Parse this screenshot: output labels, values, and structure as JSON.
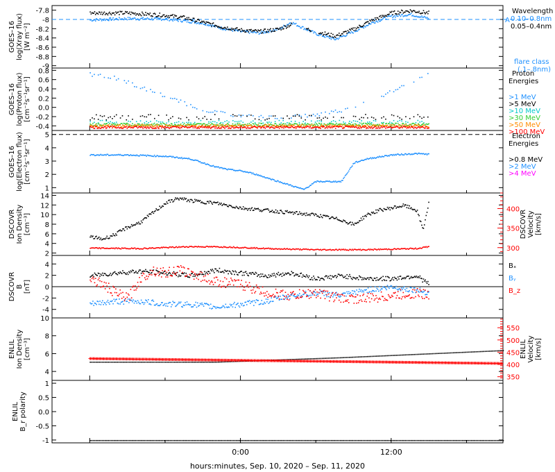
{
  "footer": {
    "xlabel": "hours:minutes, Sep. 10, 2020 – Sep. 11, 2020",
    "x_ticks": [
      "0:00",
      "12:00"
    ]
  },
  "chart_data": [
    {
      "type": "scatter",
      "ylabel_lines": [
        "GOES–16",
        "log(Xray flux)",
        "[W m⁻²]"
      ],
      "yticks": [
        -9.0,
        -8.8,
        -8.6,
        -8.4,
        -8.2,
        -8.0,
        -7.8
      ],
      "ylim": [
        -9.05,
        -7.7
      ],
      "legend_title": "Wavelength",
      "legend": [
        {
          "label": "0.10–0.8nm",
          "color": "#1e90ff"
        },
        {
          "label": "0.05–0.4nm",
          "color": "#000000"
        }
      ],
      "annotation": [
        "flare class",
        "(.1–.8nm)"
      ],
      "annotation_right_label": "A",
      "reference_line": {
        "y": -8.0,
        "color": "#1e90ff"
      },
      "series": [
        {
          "name": "0.10–0.8nm",
          "color": "#1e90ff",
          "jitter": 0.03,
          "x": [
            -12,
            -9,
            -6,
            -4.5,
            -3,
            -1.5,
            0,
            1.5,
            3,
            4,
            6,
            7.5,
            9,
            10.5,
            12,
            13.5,
            15
          ],
          "y": [
            -8.0,
            -7.97,
            -7.98,
            -8.02,
            -8.07,
            -8.18,
            -8.25,
            -8.28,
            -8.2,
            -8.05,
            -8.3,
            -8.42,
            -8.25,
            -8.05,
            -7.92,
            -7.88,
            -7.97
          ]
        },
        {
          "name": "0.05–0.4nm",
          "color": "#000000",
          "jitter": 0.04,
          "gaps": [
            [
              4.1,
              5.2
            ],
            [
              5.6,
              6.2
            ]
          ],
          "x": [
            -12,
            -9,
            -6,
            -4.5,
            -3,
            -1.5,
            0,
            1.5,
            3,
            4,
            6,
            7.5,
            9,
            10.5,
            12,
            13.5,
            15
          ],
          "y": [
            -7.85,
            -7.85,
            -7.9,
            -7.95,
            -8.05,
            -8.15,
            -8.22,
            -8.25,
            -8.2,
            -8.1,
            -8.25,
            -8.35,
            -8.2,
            -8.0,
            -7.85,
            -7.8,
            -7.85
          ]
        }
      ]
    },
    {
      "type": "scatter",
      "ylabel_lines": [
        "GOES–16",
        "log(Proton flux)",
        "[cm⁻²s⁻¹sr⁻¹]"
      ],
      "yticks": [
        -0.4,
        -0.2,
        0.0,
        0.2,
        0.4,
        0.6,
        0.8
      ],
      "ylim": [
        -0.5,
        0.85
      ],
      "legend_title": "Proton",
      "legend_title_2": "Energies",
      "legend": [
        {
          "label": ">1 MeV",
          "color": "#1e90ff"
        },
        {
          "label": ">5 MeV",
          "color": "#000000"
        },
        {
          "label": ">10 MeV",
          "color": "#00c8c8"
        },
        {
          "label": ">30 MeV",
          "color": "#32cd32"
        },
        {
          "label": ">50 MeV",
          "color": "#ff8c00"
        },
        {
          "label": ">100 MeV",
          "color": "#ff0000"
        }
      ],
      "series": [
        {
          "name": ">1 MeV",
          "color": "#1e90ff",
          "jitter": 0.04,
          "sparse": true,
          "x": [
            -12,
            -10,
            -8,
            -6,
            -4,
            -2,
            0,
            2,
            4,
            6,
            8,
            10,
            12,
            14,
            15
          ],
          "y": [
            0.72,
            0.65,
            0.45,
            0.25,
            0.05,
            -0.1,
            -0.18,
            -0.2,
            -0.2,
            -0.15,
            -0.05,
            0.1,
            0.35,
            0.62,
            0.72
          ]
        },
        {
          "name": ">5 MeV",
          "color": "#000000",
          "jitter": 0.06,
          "sparse": true,
          "x": [
            -12,
            15
          ],
          "y": [
            -0.2,
            -0.2
          ]
        },
        {
          "name": ">10 MeV",
          "color": "#00c8c8",
          "jitter": 0.03,
          "sparse": true,
          "x": [
            -12,
            15
          ],
          "y": [
            -0.3,
            -0.3
          ]
        },
        {
          "name": ">30 MeV",
          "color": "#32cd32",
          "jitter": 0.03,
          "x": [
            -12,
            15
          ],
          "y": [
            -0.36,
            -0.36
          ]
        },
        {
          "name": ">50 MeV",
          "color": "#ff8c00",
          "jitter": 0.03,
          "x": [
            -12,
            15
          ],
          "y": [
            -0.39,
            -0.39
          ]
        },
        {
          "name": ">100 MeV",
          "color": "#ff0000",
          "jitter": 0.025,
          "x": [
            -12,
            15
          ],
          "y": [
            -0.42,
            -0.42
          ]
        }
      ]
    },
    {
      "type": "scatter",
      "ylabel_lines": [
        "GOES–16",
        "log(Electron flux)",
        "[cm⁻²s⁻¹sr⁻¹]"
      ],
      "yticks": [
        1,
        2,
        3,
        4,
        5
      ],
      "ylim": [
        0.6,
        5.3
      ],
      "legend_title": "Electron",
      "legend_title_2": "Energies",
      "legend": [
        {
          "label": ">0.8 MeV",
          "color": "#000000"
        },
        {
          "label": ">2 MeV",
          "color": "#1e90ff"
        },
        {
          "label": ">4 MeV",
          "color": "#ff00ff"
        }
      ],
      "reference_line": {
        "y": 5.0,
        "color": "#000000"
      },
      "series": [
        {
          "name": ">2 MeV",
          "color": "#1e90ff",
          "jitter": 0.05,
          "x": [
            -12,
            -9,
            -6,
            -4,
            -2,
            -1,
            0,
            1,
            2,
            3,
            4,
            5,
            6,
            7,
            8,
            9,
            10,
            12,
            14,
            15
          ],
          "y": [
            3.5,
            3.5,
            3.4,
            3.2,
            2.6,
            2.4,
            2.3,
            2.1,
            1.8,
            1.5,
            1.2,
            0.9,
            1.5,
            1.5,
            1.5,
            2.9,
            3.2,
            3.5,
            3.6,
            3.55
          ]
        }
      ]
    },
    {
      "type": "scatter",
      "ylabel_lines": [
        "DSCOVR",
        "Ion Density",
        "[cm⁻³]"
      ],
      "yticks": [
        2,
        4,
        6,
        8,
        10,
        12,
        14
      ],
      "ylim": [
        1.5,
        14.5
      ],
      "right_axis": {
        "ylabel_lines": [
          "DSCOVR",
          "Velocity",
          "[km/s]"
        ],
        "yticks": [
          300,
          350,
          400
        ],
        "ylim": [
          280,
          440
        ],
        "color": "#ff0000"
      },
      "series": [
        {
          "name": "Ion Density",
          "color": "#000000",
          "jitter": 0.35,
          "x": [
            -12,
            -11,
            -10,
            -9,
            -8,
            -7,
            -6,
            -5,
            -4,
            -2,
            0,
            2,
            4,
            6,
            8,
            9,
            10,
            11,
            12,
            13,
            14,
            14.5,
            15
          ],
          "y": [
            5.5,
            5.0,
            6.0,
            7.5,
            8.5,
            10.5,
            12.5,
            13.5,
            13.0,
            12.5,
            11.5,
            11.0,
            10.5,
            10.0,
            9.0,
            8.0,
            10.0,
            11.0,
            11.5,
            12.0,
            11.0,
            7.0,
            13.0
          ]
        },
        {
          "name": "Velocity",
          "color": "#ff0000",
          "axis": "right",
          "jitter": 1.5,
          "x": [
            -12,
            -8,
            -4,
            -1,
            2,
            6,
            10,
            14,
            15
          ],
          "y": [
            300,
            299,
            304,
            303,
            299,
            296,
            296,
            299,
            304
          ]
        }
      ]
    },
    {
      "type": "scatter",
      "ylabel_lines": [
        "DSCOVR",
        "B",
        "[nT]"
      ],
      "yticks": [
        -4,
        -2,
        0,
        2,
        4
      ],
      "ylim": [
        -5.5,
        5.5
      ],
      "zero_line": true,
      "legend": [
        {
          "label": "Bₓ",
          "color": "#000000"
        },
        {
          "label": "Bᵧ",
          "color": "#1e90ff"
        },
        {
          "label": "B_z",
          "color": "#ff0000"
        }
      ],
      "series": [
        {
          "name": "Bₓ",
          "color": "#000000",
          "jitter": 0.4,
          "x": [
            -12,
            -10,
            -8,
            -6,
            -4,
            -2,
            0,
            2,
            4,
            6,
            8,
            10,
            12,
            14,
            15
          ],
          "y": [
            2.0,
            2.5,
            2.8,
            2.5,
            2.0,
            3.0,
            2.5,
            2.0,
            2.5,
            1.5,
            2.0,
            1.5,
            1.5,
            2.0,
            0.5
          ]
        },
        {
          "name": "Bᵧ",
          "color": "#1e90ff",
          "jitter": 0.5,
          "x": [
            -12,
            -10,
            -8,
            -6,
            -4,
            -2,
            0,
            2,
            4,
            6,
            8,
            10,
            12,
            14,
            15
          ],
          "y": [
            -3.0,
            -2.5,
            -2.5,
            -3.0,
            -3.0,
            -3.5,
            -3.0,
            -2.5,
            -1.5,
            -1.0,
            -1.5,
            -0.5,
            0.0,
            -0.5,
            -1.0
          ]
        },
        {
          "name": "B_z",
          "color": "#ff0000",
          "jitter": 0.9,
          "x": [
            -12,
            -11,
            -10,
            -9,
            -8,
            -7,
            -6,
            -5,
            -4,
            -2,
            0,
            2,
            4,
            6,
            8,
            10,
            12,
            14,
            15
          ],
          "y": [
            1.5,
            0.5,
            -1.0,
            -2.0,
            1.5,
            3.0,
            2.5,
            3.0,
            2.5,
            1.0,
            0.5,
            -1.0,
            -1.5,
            -1.0,
            -2.0,
            -2.0,
            -1.5,
            -1.0,
            -1.5
          ]
        }
      ]
    },
    {
      "type": "scatter",
      "ylabel_lines": [
        "ENLIL",
        "Ion Density",
        "[cm⁻³]"
      ],
      "yticks": [
        4,
        6,
        8,
        10
      ],
      "ylim": [
        3.0,
        10.0
      ],
      "right_axis": {
        "ylabel_lines": [
          "ENLIL",
          "Velocity",
          "[km/s]"
        ],
        "yticks": [
          350,
          400,
          450,
          500,
          550
        ],
        "ylim": [
          335,
          590
        ],
        "color": "#ff0000"
      },
      "series": [
        {
          "name": "Ion Density",
          "color": "#000000",
          "dense": true,
          "jitter": 0,
          "x": [
            -12,
            -2,
            8,
            20.9
          ],
          "y": [
            5.1,
            5.1,
            5.6,
            6.4
          ]
        },
        {
          "name": "Velocity",
          "color": "#ff0000",
          "axis": "right",
          "marker": "plus",
          "jitter": 0,
          "x": [
            -12,
            20.9
          ],
          "y": [
            424,
            404
          ]
        }
      ]
    },
    {
      "type": "scatter",
      "ylabel_lines": [
        "ENLIL",
        "B_r polarity"
      ],
      "yticks": [
        -1.0,
        -0.5,
        0.0,
        0.5,
        1.0
      ],
      "ylim": [
        -1.1,
        1.1
      ],
      "series": [
        {
          "name": "B_r polarity",
          "color": "#000000",
          "dense": true,
          "jitter": 0,
          "x": [
            -12,
            20.9
          ],
          "y": [
            -1.0,
            -1.0
          ]
        }
      ]
    }
  ]
}
